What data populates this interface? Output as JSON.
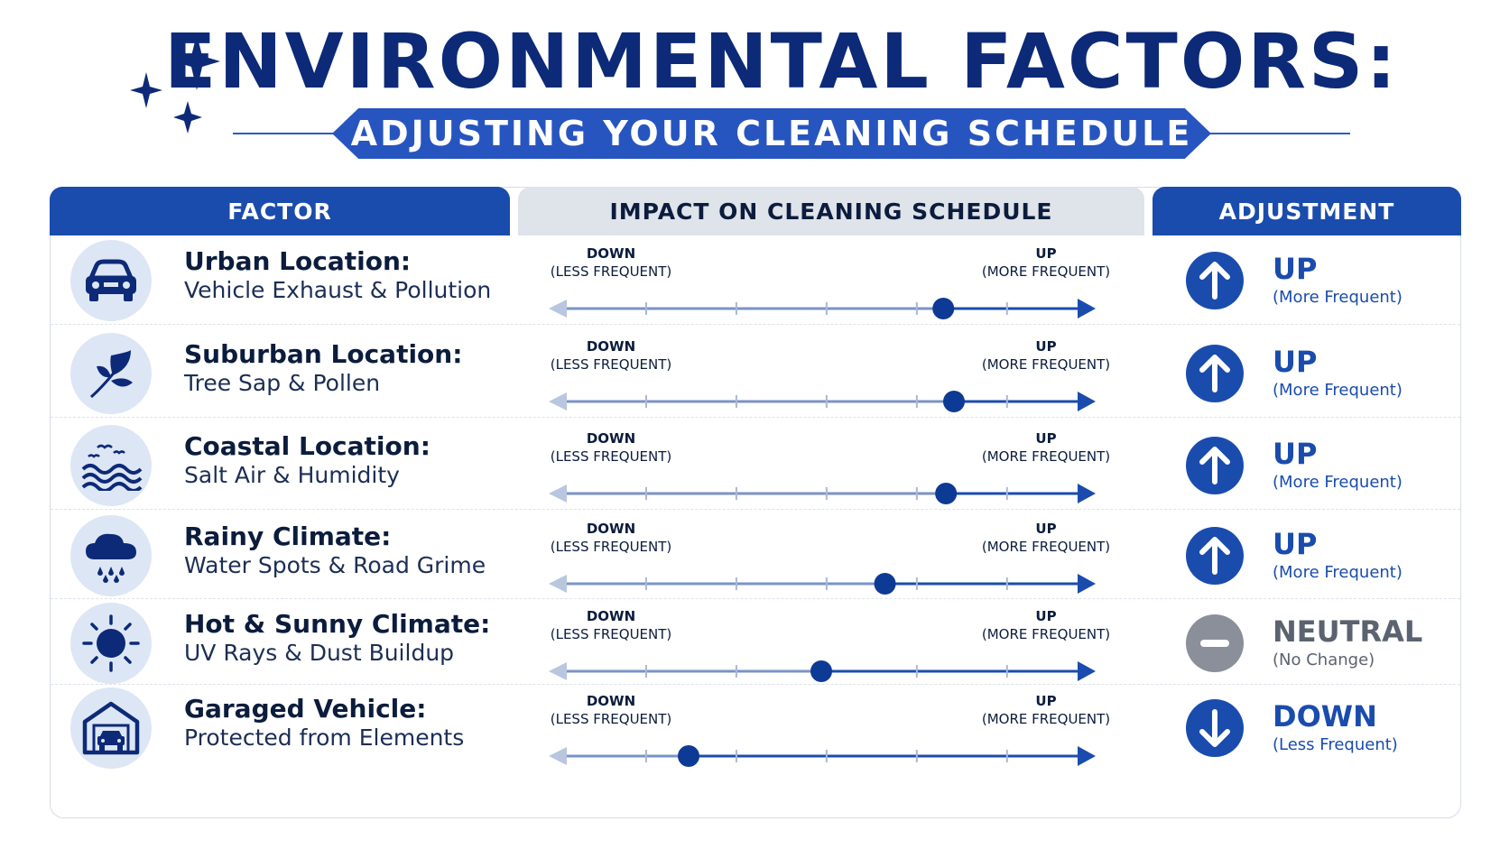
{
  "title": "ENVIRONMENTAL FACTORS:",
  "subtitle": "ADJUSTING YOUR CLEANING SCHEDULE",
  "headers": {
    "factor": "FACTOR",
    "impact": "IMPACT ON CLEANING SCHEDULE",
    "adjustment": "ADJUSTMENT"
  },
  "scale": {
    "down": "DOWN",
    "down_sub": "(LESS FREQUENT)",
    "up": "UP",
    "up_sub": "(MORE FREQUENT)"
  },
  "colors": {
    "navy": "#0d2a78",
    "accent": "#1a4cae",
    "neutral": "#8a8f99"
  },
  "rows": [
    {
      "icon": "car-icon",
      "name": "Urban Location:",
      "desc": "Vehicle Exhaust & Pollution",
      "impact": 0.73,
      "adjustment": "UP",
      "adjustment_sub": "(More Frequent)",
      "direction": "up"
    },
    {
      "icon": "leaf-icon",
      "name": "Suburban Location:",
      "desc": "Tree Sap & Pollen",
      "impact": 0.75,
      "adjustment": "UP",
      "adjustment_sub": "(More Frequent)",
      "direction": "up"
    },
    {
      "icon": "waves-icon",
      "name": "Coastal Location:",
      "desc": "Salt Air & Humidity",
      "impact": 0.735,
      "adjustment": "UP",
      "adjustment_sub": "(More Frequent)",
      "direction": "up"
    },
    {
      "icon": "rain-cloud-icon",
      "name": "Rainy Climate:",
      "desc": "Water Spots & Road Grime",
      "impact": 0.62,
      "adjustment": "UP",
      "adjustment_sub": "(More Frequent)",
      "direction": "up"
    },
    {
      "icon": "sun-icon",
      "name": "Hot & Sunny Climate:",
      "desc": "UV Rays & Dust Buildup",
      "impact": 0.5,
      "adjustment": "NEUTRAL",
      "adjustment_sub": "(No Change)",
      "direction": "neutral"
    },
    {
      "icon": "garage-icon",
      "name": "Garaged Vehicle:",
      "desc": "Protected from Elements",
      "impact": 0.25,
      "adjustment": "DOWN",
      "adjustment_sub": "(Less Frequent)",
      "direction": "down"
    }
  ]
}
